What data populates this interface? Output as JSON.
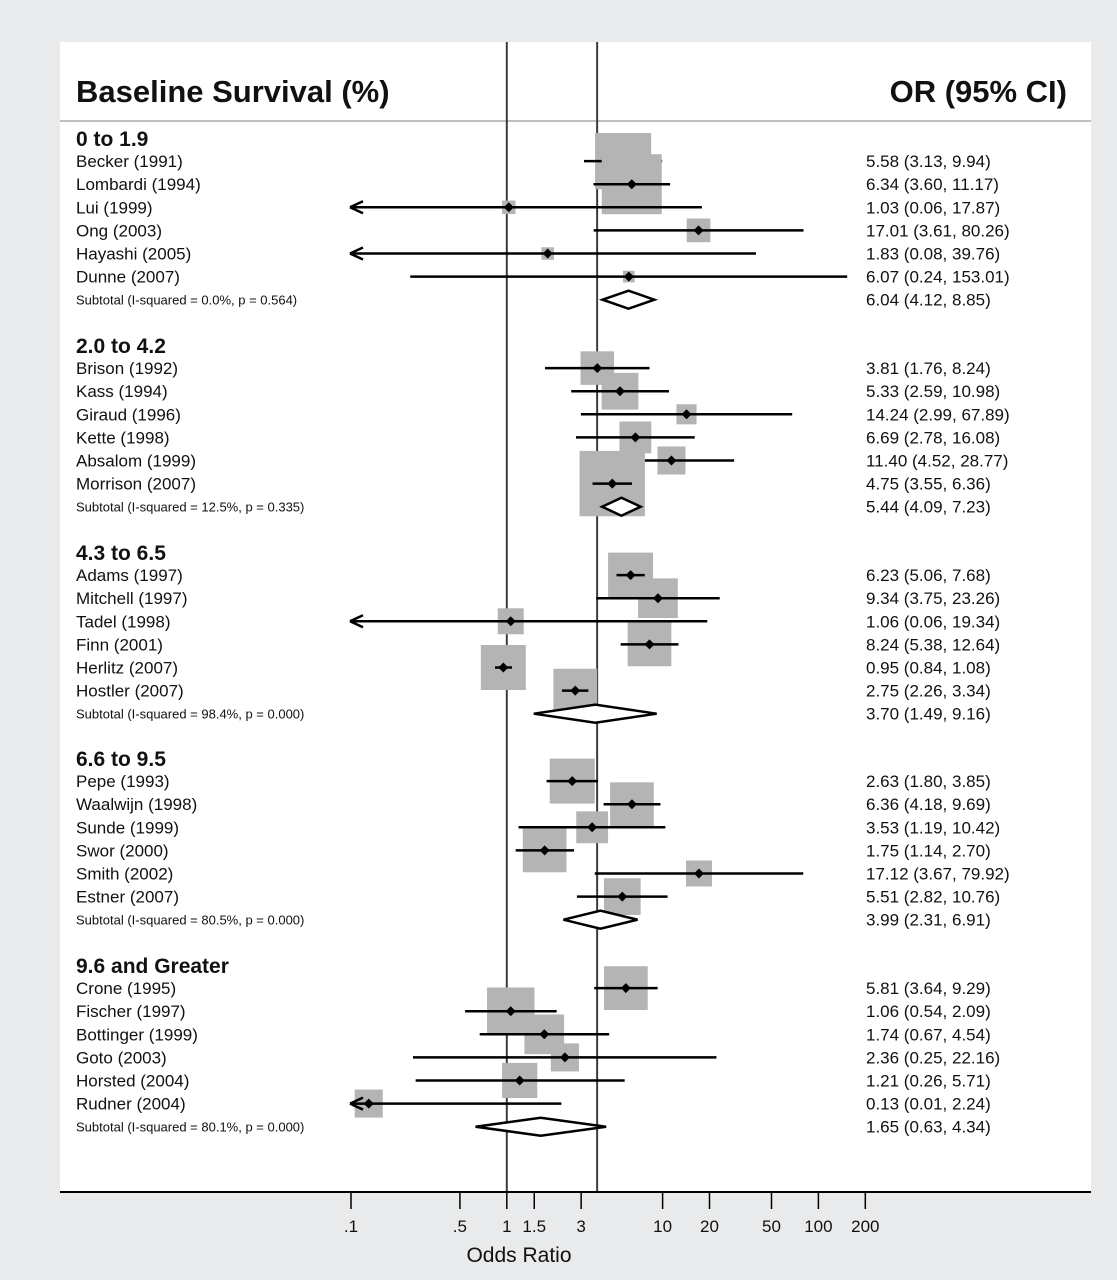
{
  "chart_data": {
    "type": "forest",
    "left_header": "Baseline Survival (%)",
    "right_header": "OR (95% CI)",
    "xlabel": "Odds Ratio",
    "x_scale": "log",
    "xlim": [
      0.1,
      200
    ],
    "x_ticks": [
      ".1",
      ".5",
      "1",
      "1.5",
      "3",
      "10",
      "20",
      "50",
      "100",
      "200"
    ],
    "x_tick_values": [
      0.1,
      0.5,
      1,
      1.5,
      3,
      10,
      20,
      50,
      100,
      200
    ],
    "reference_lines": [
      1,
      3.8
    ],
    "groups": [
      {
        "label": "0 to 1.9",
        "studies": [
          {
            "name": "Becker (1991)",
            "or": 5.58,
            "lo": 3.13,
            "hi": 9.94,
            "ci_text": "5.58 (3.13, 9.94)",
            "weight": 14
          },
          {
            "name": "Lombardi (1994)",
            "or": 6.34,
            "lo": 3.6,
            "hi": 11.17,
            "ci_text": "6.34 (3.60, 11.17)",
            "weight": 16
          },
          {
            "name": "Lui (1999)",
            "or": 1.03,
            "lo": 0.06,
            "hi": 17.87,
            "ci_text": "1.03 (0.06, 17.87)",
            "weight": 0.8
          },
          {
            "name": "Ong (2003)",
            "or": 17.01,
            "lo": 3.61,
            "hi": 80.26,
            "ci_text": "17.01 (3.61, 80.26)",
            "weight": 2.5
          },
          {
            "name": "Hayashi (2005)",
            "or": 1.83,
            "lo": 0.08,
            "hi": 39.76,
            "ci_text": "1.83 (0.08, 39.76)",
            "weight": 0.7
          },
          {
            "name": "Dunne (2007)",
            "or": 6.07,
            "lo": 0.24,
            "hi": 153.01,
            "ci_text": "6.07 (0.24, 153.01)",
            "weight": 0.6
          }
        ],
        "subtotal": {
          "label": "Subtotal  (I-squared = 0.0%, p = 0.564)",
          "or": 6.04,
          "lo": 4.12,
          "hi": 8.85,
          "ci_text": "6.04 (4.12, 8.85)"
        }
      },
      {
        "label": "2.0 to 4.2",
        "studies": [
          {
            "name": "Brison (1992)",
            "or": 3.81,
            "lo": 1.76,
            "hi": 8.24,
            "ci_text": "3.81 (1.76, 8.24)",
            "weight": 5
          },
          {
            "name": "Kass (1994)",
            "or": 5.33,
            "lo": 2.59,
            "hi": 10.98,
            "ci_text": "5.33 (2.59, 10.98)",
            "weight": 6
          },
          {
            "name": "Giraud (1996)",
            "or": 14.24,
            "lo": 2.99,
            "hi": 67.89,
            "ci_text": "14.24 (2.99, 67.89)",
            "weight": 1.8
          },
          {
            "name": "Kette (1998)",
            "or": 6.69,
            "lo": 2.78,
            "hi": 16.08,
            "ci_text": "6.69 (2.78, 16.08)",
            "weight": 4.5
          },
          {
            "name": "Absalom (1999)",
            "or": 11.4,
            "lo": 4.52,
            "hi": 28.77,
            "ci_text": "11.40 (4.52, 28.77)",
            "weight": 3.5
          },
          {
            "name": "Morrison (2007)",
            "or": 4.75,
            "lo": 3.55,
            "hi": 6.36,
            "ci_text": "4.75 (3.55, 6.36)",
            "weight": 19
          }
        ],
        "subtotal": {
          "label": "Subtotal  (I-squared = 12.5%, p = 0.335)",
          "or": 5.44,
          "lo": 4.09,
          "hi": 7.23,
          "ci_text": "5.44 (4.09, 7.23)"
        }
      },
      {
        "label": "4.3 to 6.5",
        "studies": [
          {
            "name": "Adams (1997)",
            "or": 6.23,
            "lo": 5.06,
            "hi": 7.68,
            "ci_text": "6.23 (5.06, 7.68)",
            "weight": 9
          },
          {
            "name": "Mitchell (1997)",
            "or": 9.34,
            "lo": 3.75,
            "hi": 23.26,
            "ci_text": "9.34 (3.75, 23.26)",
            "weight": 7
          },
          {
            "name": "Tadel (1998)",
            "or": 1.06,
            "lo": 0.06,
            "hi": 19.34,
            "ci_text": "1.06 (0.06, 19.34)",
            "weight": 3
          },
          {
            "name": "Finn (2001)",
            "or": 8.24,
            "lo": 5.38,
            "hi": 12.64,
            "ci_text": "8.24 (5.38, 12.64)",
            "weight": 8.5
          },
          {
            "name": "Herlitz (2007)",
            "or": 0.95,
            "lo": 0.84,
            "hi": 1.08,
            "ci_text": "0.95 (0.84, 1.08)",
            "weight": 9
          },
          {
            "name": "Hostler (2007)",
            "or": 2.75,
            "lo": 2.26,
            "hi": 3.34,
            "ci_text": "2.75 (2.26, 3.34)",
            "weight": 8.5
          }
        ],
        "subtotal": {
          "label": "Subtotal  (I-squared = 98.4%, p = 0.000)",
          "or": 3.7,
          "lo": 1.49,
          "hi": 9.16,
          "ci_text": "3.70 (1.49, 9.16)"
        }
      },
      {
        "label": "6.6 to 9.5",
        "studies": [
          {
            "name": "Pepe (1993)",
            "or": 2.63,
            "lo": 1.8,
            "hi": 3.85,
            "ci_text": "2.63 (1.80, 3.85)",
            "weight": 9
          },
          {
            "name": "Waalwijn (1998)",
            "or": 6.36,
            "lo": 4.18,
            "hi": 9.69,
            "ci_text": "6.36 (4.18, 9.69)",
            "weight": 8.5
          },
          {
            "name": "Sunde (1999)",
            "or": 3.53,
            "lo": 1.19,
            "hi": 10.42,
            "ci_text": "3.53 (1.19, 10.42)",
            "weight": 4.5
          },
          {
            "name": "Swor (2000)",
            "or": 1.75,
            "lo": 1.14,
            "hi": 2.7,
            "ci_text": "1.75 (1.14, 2.70)",
            "weight": 8.5
          },
          {
            "name": "Smith (2002)",
            "or": 17.12,
            "lo": 3.67,
            "hi": 79.92,
            "ci_text": "17.12 (3.67, 79.92)",
            "weight": 3
          },
          {
            "name": "Estner (2007)",
            "or": 5.51,
            "lo": 2.82,
            "hi": 10.76,
            "ci_text": "5.51 (2.82, 10.76)",
            "weight": 6
          }
        ],
        "subtotal": {
          "label": "Subtotal  (I-squared = 80.5%, p = 0.000)",
          "or": 3.99,
          "lo": 2.31,
          "hi": 6.91,
          "ci_text": "3.99 (2.31, 6.91)"
        }
      },
      {
        "label": "9.6 and Greater",
        "studies": [
          {
            "name": "Crone (1995)",
            "or": 5.81,
            "lo": 3.64,
            "hi": 9.29,
            "ci_text": "5.81 (3.64, 9.29)",
            "weight": 8.5
          },
          {
            "name": "Fischer (1997)",
            "or": 1.06,
            "lo": 0.54,
            "hi": 2.09,
            "ci_text": "1.06 (0.54, 2.09)",
            "weight": 10
          },
          {
            "name": "Bottinger (1999)",
            "or": 1.74,
            "lo": 0.67,
            "hi": 4.54,
            "ci_text": "1.74 (0.67, 4.54)",
            "weight": 7
          },
          {
            "name": "Goto (2003)",
            "or": 2.36,
            "lo": 0.25,
            "hi": 22.16,
            "ci_text": "2.36 (0.25, 22.16)",
            "weight": 3.5
          },
          {
            "name": "Horsted (2004)",
            "or": 1.21,
            "lo": 0.26,
            "hi": 5.71,
            "ci_text": "1.21 (0.26, 5.71)",
            "weight": 5.5
          },
          {
            "name": "Rudner (2004)",
            "or": 0.13,
            "lo": 0.01,
            "hi": 2.24,
            "ci_text": "0.13 (0.01, 2.24)",
            "weight": 3.5
          }
        ],
        "subtotal": {
          "label": "Subtotal  (I-squared = 80.1%, p = 0.000)",
          "or": 1.65,
          "lo": 0.63,
          "hi": 4.34,
          "ci_text": "1.65 (0.63, 4.34)"
        }
      }
    ],
    "colors": {
      "box": "#b4b4b4",
      "line": "#000000",
      "reference_line": "#3c3c3c"
    }
  }
}
